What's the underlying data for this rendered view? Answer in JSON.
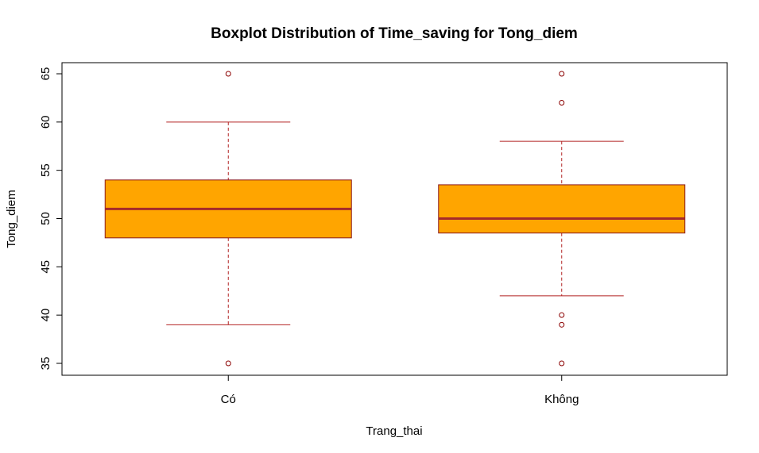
{
  "chart_data": {
    "type": "box",
    "title": "Boxplot Distribution of Time_saving for Tong_diem",
    "xlabel": "Trang_thai",
    "ylabel": "Tong_diem",
    "ylim": [
      34,
      66
    ],
    "yticks": [
      "35",
      "40",
      "45",
      "50",
      "55",
      "60",
      "65"
    ],
    "categories": [
      "Có",
      "Không"
    ],
    "boxes": [
      {
        "category": "Có",
        "whisker_low": 39,
        "q1": 48,
        "median": 51,
        "q3": 54,
        "whisker_high": 60,
        "outliers": [
          35,
          65
        ]
      },
      {
        "category": "Không",
        "whisker_low": 42,
        "q1": 48.5,
        "median": 50,
        "q3": 53.5,
        "whisker_high": 58,
        "outliers": [
          35,
          39,
          40,
          62,
          65
        ]
      }
    ],
    "colors": {
      "box_fill": "#FFA500",
      "box_border": "#8B1A1A",
      "median": "#A52A2A",
      "whisker": "#B22222",
      "outlier": "#8B0000"
    },
    "grid": false,
    "legend": "none"
  }
}
